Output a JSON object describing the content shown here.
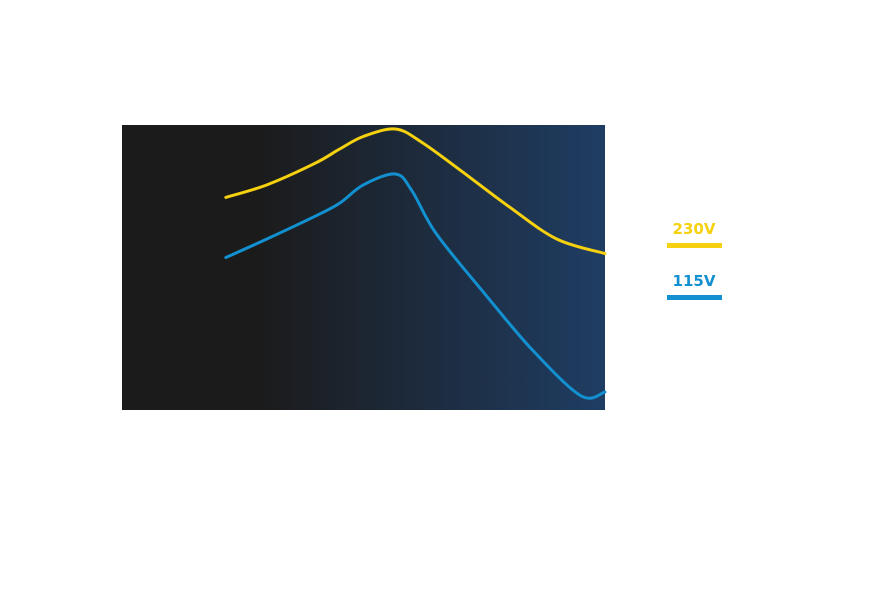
{
  "chart_data": {
    "type": "line",
    "title": "",
    "xlabel": "",
    "ylabel": "",
    "xlim": [
      0,
      100
    ],
    "ylim": [
      0,
      100
    ],
    "grid": false,
    "legend_position": "right",
    "background_gradient": [
      "#1b1b1b",
      "#1f3d63"
    ],
    "series": [
      {
        "name": "230V",
        "color": "#f5d10f",
        "x": [
          21.5,
          30,
          40,
          45,
          50,
          56.6,
          62,
          70,
          80,
          90,
          100
        ],
        "y": [
          74.6,
          79,
          86.6,
          91.5,
          96,
          98.6,
          94,
          84.2,
          71.5,
          60,
          54.9
        ]
      },
      {
        "name": "115V",
        "color": "#1290d0",
        "x": [
          21.5,
          30,
          40,
          45,
          50,
          56.6,
          60,
          65,
          75,
          85,
          95,
          100
        ],
        "y": [
          53.5,
          60,
          68,
          72.5,
          79,
          82.8,
          77,
          62,
          41,
          21,
          5,
          6.3
        ]
      }
    ]
  }
}
